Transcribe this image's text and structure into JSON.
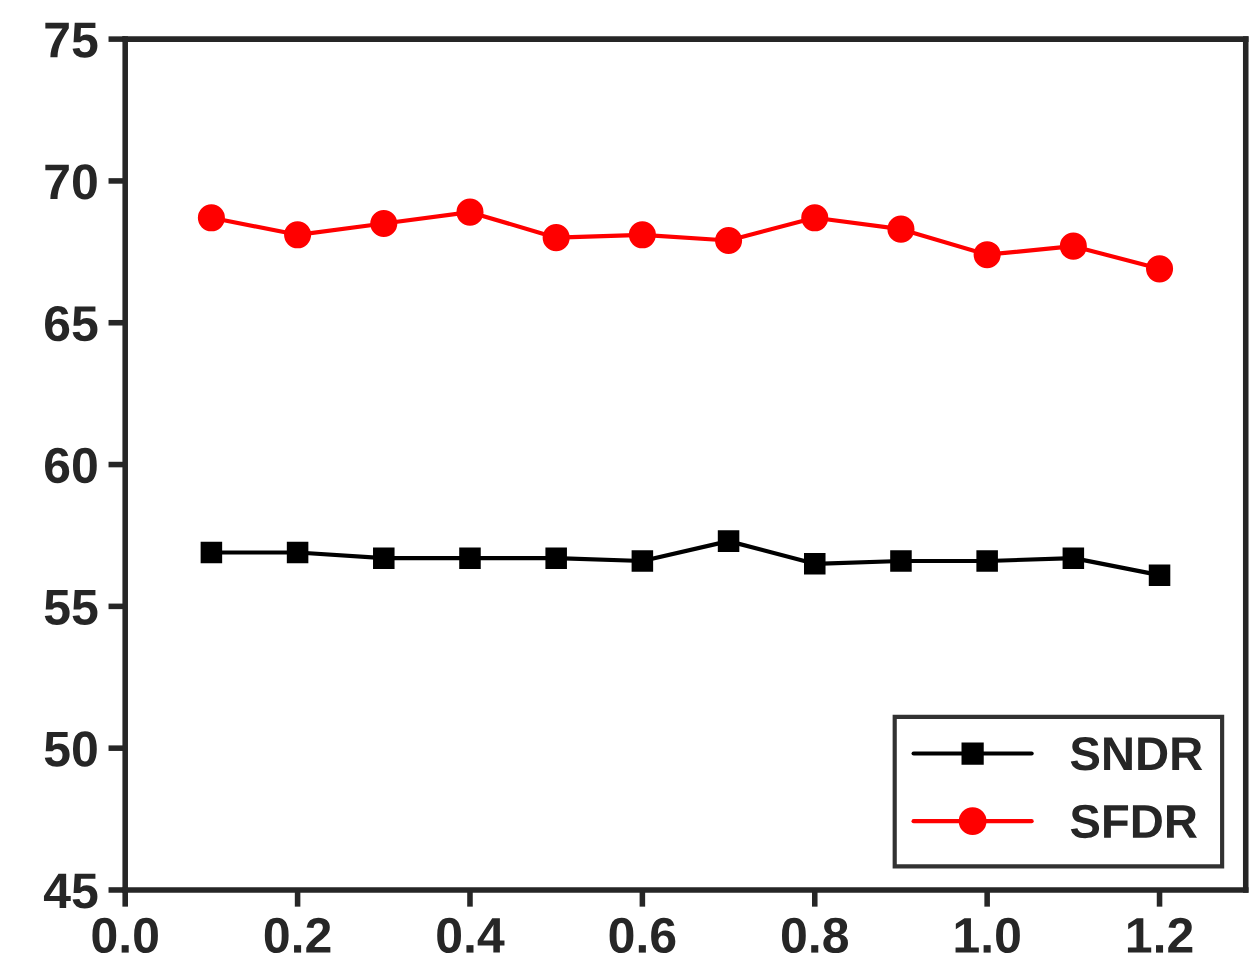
{
  "chart_data": {
    "type": "line",
    "x": [
      0.1,
      0.2,
      0.3,
      0.4,
      0.5,
      0.6,
      0.7,
      0.8,
      0.9,
      1.0,
      1.1,
      1.2
    ],
    "series": [
      {
        "name": "SNDR",
        "color": "#000000",
        "marker": "square",
        "values": [
          56.9,
          56.9,
          56.7,
          56.7,
          56.7,
          56.6,
          57.3,
          56.5,
          56.6,
          56.6,
          56.7,
          56.1
        ]
      },
      {
        "name": "SFDR",
        "color": "#ff0000",
        "marker": "circle",
        "values": [
          68.7,
          68.1,
          68.5,
          68.9,
          68.0,
          68.1,
          67.9,
          68.7,
          68.3,
          67.4,
          67.7,
          66.9
        ]
      }
    ],
    "xlim": [
      0.0,
      1.3
    ],
    "xticks": [
      {
        "value": 0.0,
        "label": "0.0"
      },
      0.2,
      0.4,
      0.6,
      0.8,
      {
        "value": 1.0,
        "label": "1.0"
      },
      1.2
    ],
    "ylim": [
      45,
      75
    ],
    "yticks": [
      45,
      50,
      55,
      60,
      65,
      70,
      75
    ],
    "legend": "bottom right",
    "grid": false,
    "line_style": "solid"
  }
}
